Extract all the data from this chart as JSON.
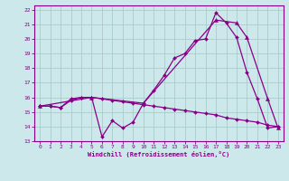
{
  "bg_color": "#cce8ea",
  "grid_color": "#aacccc",
  "line_color": "#880088",
  "xlabel": "Windchill (Refroidissement éolien,°C)",
  "xlim": [
    -0.5,
    23.5
  ],
  "ylim": [
    13,
    22.3
  ],
  "yticks": [
    13,
    14,
    15,
    16,
    17,
    18,
    19,
    20,
    21,
    22
  ],
  "xticks": [
    0,
    1,
    2,
    3,
    4,
    5,
    6,
    7,
    8,
    9,
    10,
    11,
    12,
    13,
    14,
    15,
    16,
    17,
    18,
    19,
    20,
    21,
    22,
    23
  ],
  "curve1_x": [
    0,
    1,
    2,
    3,
    4,
    5,
    6,
    7,
    8,
    9,
    10,
    11,
    12,
    13,
    14,
    15,
    16,
    17,
    18,
    19,
    20,
    21,
    22,
    23
  ],
  "curve1_y": [
    15.4,
    15.4,
    15.3,
    15.8,
    16.0,
    16.0,
    13.3,
    14.4,
    13.9,
    14.3,
    15.6,
    16.5,
    17.5,
    18.7,
    19.0,
    19.9,
    20.0,
    21.8,
    21.1,
    20.1,
    17.7,
    15.9,
    13.9,
    14.0
  ],
  "curve2_x": [
    0,
    1,
    2,
    3,
    4,
    5,
    6,
    7,
    8,
    9,
    10,
    11,
    12,
    13,
    14,
    15,
    16,
    17,
    18,
    19,
    20,
    21,
    22,
    23
  ],
  "curve2_y": [
    15.4,
    15.4,
    15.3,
    15.9,
    16.0,
    16.0,
    15.9,
    15.8,
    15.7,
    15.6,
    15.5,
    15.4,
    15.3,
    15.2,
    15.1,
    15.0,
    14.9,
    14.8,
    14.6,
    14.5,
    14.4,
    14.3,
    14.1,
    14.0
  ],
  "curve3_x": [
    0,
    5,
    10,
    17,
    19,
    20,
    22,
    23
  ],
  "curve3_y": [
    15.4,
    16.0,
    15.6,
    21.3,
    21.1,
    20.1,
    15.9,
    13.9
  ]
}
